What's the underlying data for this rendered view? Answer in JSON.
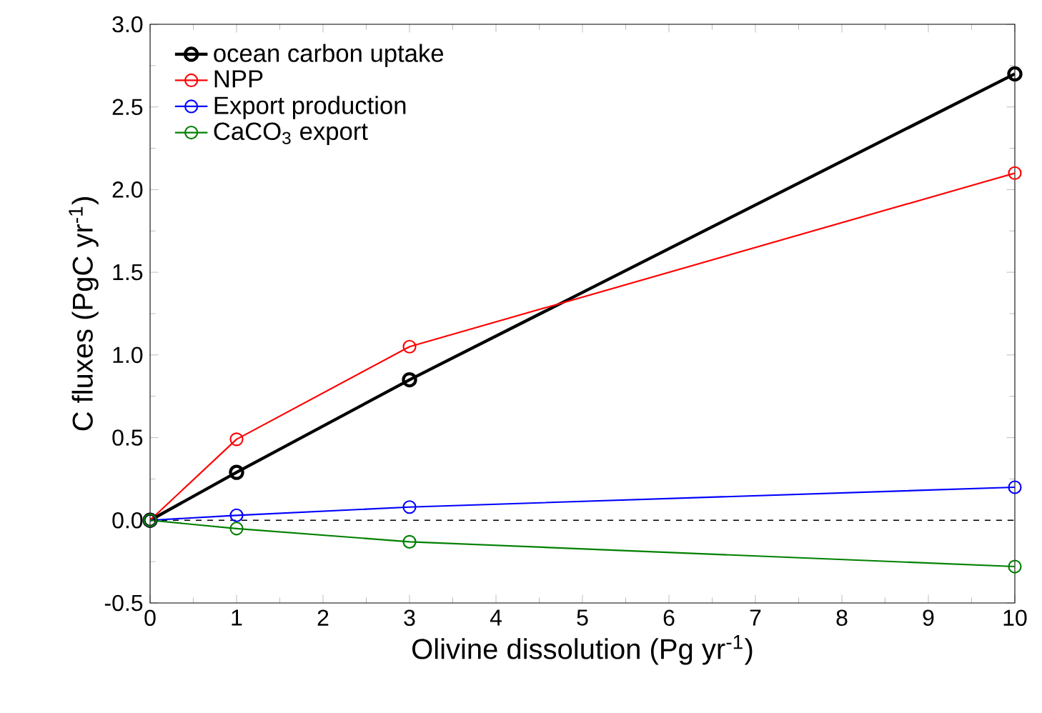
{
  "chart_data": {
    "type": "line",
    "xlabel": "Olivine dissolution (Pg yr$^{-1}$)",
    "ylabel": "C fluxes (PgC yr$^{-1}$)",
    "x": [
      0,
      1,
      3,
      10
    ],
    "series": [
      {
        "name": "ocean carbon uptake",
        "color": "#000000",
        "values": [
          0,
          0.29,
          0.85,
          2.7
        ]
      },
      {
        "name": "NPP",
        "color": "#ff0000",
        "values": [
          0,
          0.49,
          1.05,
          2.1
        ]
      },
      {
        "name": "Export production",
        "color": "#0000ff",
        "values": [
          0,
          0.03,
          0.08,
          0.2
        ]
      },
      {
        "name": "CaCO$_{3}$ export",
        "color": "#008000",
        "values": [
          0,
          -0.05,
          -0.13,
          -0.28
        ]
      }
    ],
    "xlim": [
      0,
      10
    ],
    "xticks": [
      0,
      1,
      2,
      3,
      4,
      5,
      6,
      7,
      8,
      9,
      10
    ],
    "ylim": [
      -0.5,
      3.0
    ],
    "yticks": [
      -0.5,
      {
        "value": 0,
        "label": "0.0"
      },
      0.5,
      {
        "value": 1,
        "label": "1.0"
      },
      1.5,
      {
        "value": 2,
        "label": "2.0"
      },
      2.5,
      {
        "value": 3,
        "label": "3.0"
      }
    ],
    "ref_lines": [
      {
        "axis": "y",
        "value": 0,
        "color": "#000000",
        "line_style": "dashed"
      }
    ],
    "grid": false,
    "legend": "top left",
    "marker": "circle",
    "line_style": "solid"
  }
}
